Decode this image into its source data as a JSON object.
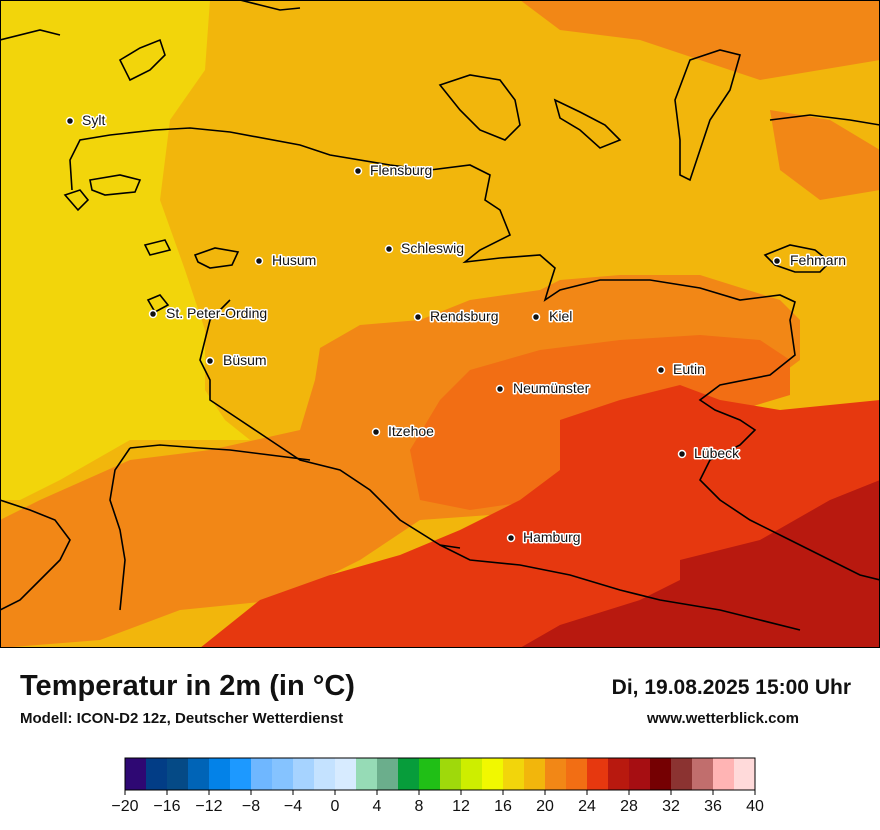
{
  "title": "Temperatur in 2m (in °C)",
  "model": "Modell: ICON-D2 12z, Deutscher Wetterdienst",
  "datetime": "Di, 19.08.2025 15:00 Uhr",
  "website": "www.wetterblick.com",
  "cities": [
    "Sylt",
    "Flensburg",
    "Schleswig",
    "Husum",
    "Fehmarn",
    "St. Peter-Ording",
    "Rendsburg",
    "Kiel",
    "Büsum",
    "Eutin",
    "Neumünster",
    "Itzehoe",
    "Lübeck",
    "Hamburg"
  ],
  "legend": {
    "unit": "°C",
    "tick_labels": [
      "−20",
      "−16",
      "−12",
      "−8",
      "−4",
      "0",
      "4",
      "8",
      "12",
      "16",
      "20",
      "24",
      "28",
      "32",
      "36",
      "40"
    ],
    "min": -20,
    "max": 40,
    "step": 2,
    "colors": [
      "#2e0873",
      "#023d86",
      "#054a86",
      "#0064b7",
      "#0382e8",
      "#1d99ff",
      "#6fb7ff",
      "#85c3ff",
      "#a6d3ff",
      "#c4e2ff",
      "#d7ebff",
      "#96dbb6",
      "#6bae8c",
      "#079d3b",
      "#20bf16",
      "#9fd90b",
      "#cdee00",
      "#f1f800",
      "#f2d50b",
      "#f2b60c",
      "#f28716",
      "#f26e14",
      "#e6380f",
      "#b8190f",
      "#a60e12",
      "#750002",
      "#8b3331",
      "#c16e6d",
      "#ffb4b4",
      "#ffdada"
    ]
  }
}
